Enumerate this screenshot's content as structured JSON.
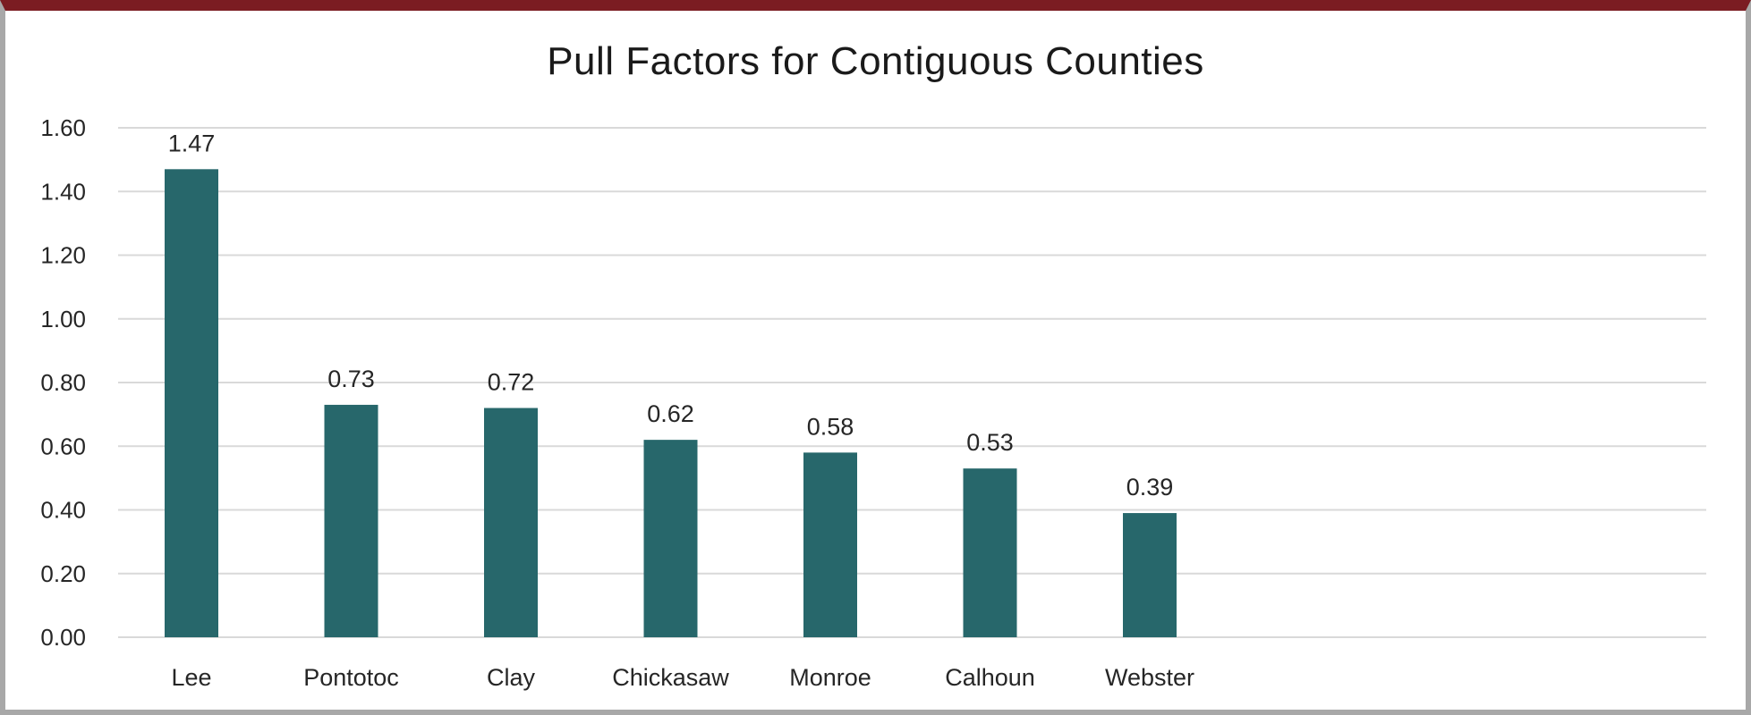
{
  "chart_data": {
    "type": "bar",
    "title": "Pull Factors for Contiguous Counties",
    "categories": [
      "Lee",
      "Pontotoc",
      "Clay",
      "Chickasaw",
      "Monroe",
      "Calhoun",
      "Webster"
    ],
    "values": [
      1.47,
      0.73,
      0.72,
      0.62,
      0.58,
      0.53,
      0.39
    ],
    "data_labels": [
      "1.47",
      "0.73",
      "0.72",
      "0.62",
      "0.58",
      "0.53",
      "0.39"
    ],
    "y_ticks": [
      "0.00",
      "0.20",
      "0.40",
      "0.60",
      "0.80",
      "1.00",
      "1.20",
      "1.40",
      "1.60"
    ],
    "ylim": [
      0,
      1.6
    ],
    "xlabel": "",
    "ylabel": "",
    "grid": true,
    "legend": "none",
    "colors": {
      "bar": "#27676b",
      "grid": "#d9d9d9",
      "frame_top": "#7b1c22",
      "frame_side": "#a8a8a8"
    }
  }
}
